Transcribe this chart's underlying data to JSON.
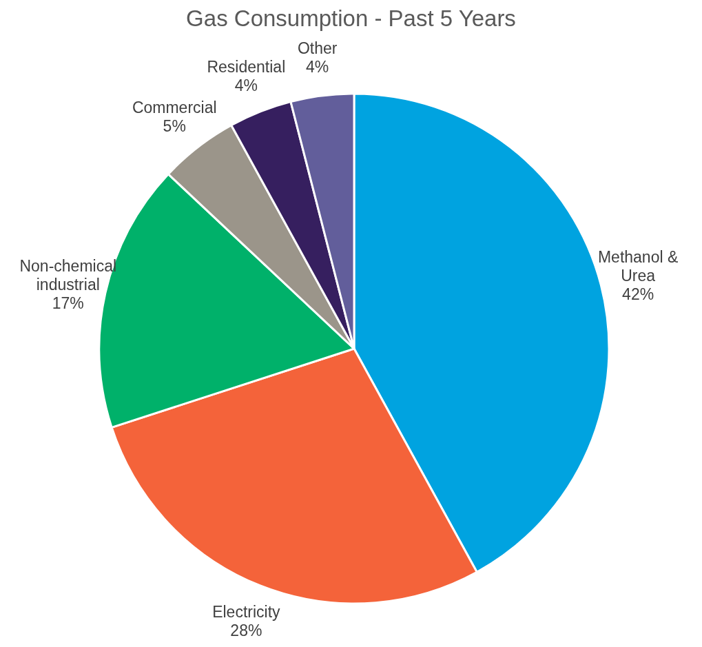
{
  "chart_data": {
    "type": "pie",
    "title": "Gas Consumption - Past 5 Years",
    "categories": [
      "Methanol & Urea",
      "Electricity",
      "Non-chemical industrial",
      "Commercial",
      "Residential",
      "Other"
    ],
    "values": [
      42,
      28,
      17,
      5,
      4,
      4
    ],
    "value_labels": [
      "42%",
      "28%",
      "17%",
      "5%",
      "4%",
      "4%"
    ],
    "colors": [
      "#00a3e0",
      "#f4633a",
      "#00b16a",
      "#9b958a",
      "#361f5f",
      "#625e9b"
    ],
    "legend": false
  }
}
